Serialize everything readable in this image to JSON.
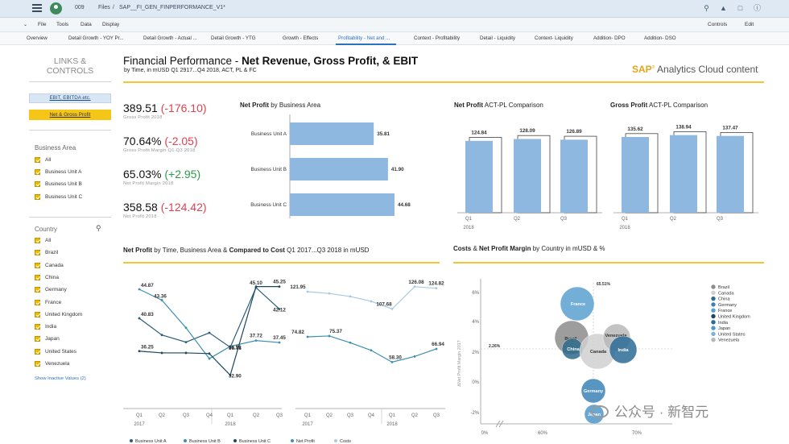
{
  "shell": {
    "counter": "009",
    "files_label": "Files",
    "separator": "/",
    "doc_name": "SAP__FI_GEN_FINPERFORMANCE_V1*",
    "icons": [
      "search-icon",
      "megaphone-icon",
      "chat-icon",
      "comment-icon",
      "help-icon"
    ]
  },
  "menubar": {
    "file": "File",
    "tools": "Tools",
    "data": "Data",
    "display": "Display",
    "controls": "Controls",
    "edit": "Edit"
  },
  "tabs": [
    {
      "label": "Overview"
    },
    {
      "label": "Detail Growth - YOY Pr..."
    },
    {
      "label": "Detail Growth - Actual ..."
    },
    {
      "label": "Detail Growth - YTG"
    },
    {
      "label": "Growth - Effects"
    },
    {
      "label": "Profitability - Net and ..."
    },
    {
      "label": "Context - Profitability"
    },
    {
      "label": "Detail - Liquidity"
    },
    {
      "label": "Context- Liquidity"
    },
    {
      "label": "Addition- DPO"
    },
    {
      "label": "Addition- DSO"
    }
  ],
  "active_tab_index": 5,
  "sidebar": {
    "title_line1": "LINKS &",
    "title_line2": "CONTROLS",
    "link1": "EBIT, EBITDA etc.",
    "link2": "Net & Gross Profit",
    "business_area": {
      "label": "Business Area",
      "items": [
        "All",
        "Business Unit A",
        "Business Unit B",
        "Business Unit C"
      ]
    },
    "country": {
      "label": "Country",
      "items": [
        "All",
        "Brazil",
        "Canada",
        "China",
        "Germany",
        "France",
        "United Kingdom",
        "India",
        "Japan",
        "United States",
        "Venezuela"
      ]
    },
    "show_inactive": "Show Inactive Values (2)"
  },
  "header": {
    "title_normal": "Financial Performance - ",
    "title_bold": "Net Revenue, Gross Profit, & EBIT",
    "subtitle": "by Time, in mUSD Q1 2917...Q4 2018, ACT, PL & FC",
    "brand_sap": "SAP",
    "brand_rest": "Analytics Cloud content"
  },
  "kpis": [
    {
      "value": "389.51",
      "delta": "(-176.10)",
      "delta_sign": "neg",
      "label": "Gross Profit 2018"
    },
    {
      "value": "70.64%",
      "delta": "(-2.05)",
      "delta_sign": "neg",
      "label": "Gross Profit Margin Q1-Q3 2018"
    },
    {
      "value": "65.03%",
      "delta": "(+2.95)",
      "delta_sign": "pos",
      "label": "Net Profit Margin 2018"
    },
    {
      "value": "358.58",
      "delta": "(-124.42)",
      "delta_sign": "neg",
      "label": "Net Profit 2018"
    }
  ],
  "chart_titles": {
    "np_ba_bold": "Net Profit",
    "np_ba_rest": " by Business Area",
    "np_actpl_bold": "Net Profit",
    "np_actpl_rest": " ACT-PL Comparison",
    "gp_actpl_bold": "Gross Profit",
    "gp_actpl_rest": " ACT-PL Comparison",
    "np_time_bold1": "Net Profit",
    "np_time_mid": " by Time, Business Area & ",
    "np_time_bold2": "Compared to Cost",
    "np_time_rest": " Q1 2017...Q3 2018 in mUSD",
    "costs_bold1": "Costs",
    "costs_mid": " & ",
    "costs_bold2": "Net Profit Margin",
    "costs_rest": " by Country in mUSD & %"
  },
  "legend_bottom": [
    "Business Unit A",
    "Business Unit B",
    "Business Unit C",
    "Net Profit",
    "Costs"
  ],
  "watermark": "公众号 · 新智元",
  "chart_data": [
    {
      "type": "bar",
      "title": "Net Profit by Business Area",
      "orientation": "horizontal",
      "categories": [
        "Business Unit A",
        "Business Unit B",
        "Business Unit C"
      ],
      "values": [
        35.81,
        41.9,
        44.68
      ],
      "color": "#8fb8e0"
    },
    {
      "type": "bar",
      "title": "Net Profit ACT-PL Comparison",
      "categories": [
        "Q1",
        "Q2",
        "Q3"
      ],
      "year_label": "2018",
      "series": [
        {
          "name": "ACT",
          "values": [
            124.84,
            128.09,
            126.89
          ]
        }
      ],
      "ylim": [
        0,
        140
      ]
    },
    {
      "type": "bar",
      "title": "Gross Profit ACT-PL Comparison",
      "categories": [
        "Q1",
        "Q2",
        "Q3"
      ],
      "year_label": "2018",
      "series": [
        {
          "name": "ACT",
          "values": [
            135.62,
            138.94,
            137.47
          ]
        }
      ],
      "ylim": [
        0,
        150
      ]
    },
    {
      "type": "line",
      "title": "Net Profit by Time, Business Area",
      "categories": [
        "Q1",
        "Q2",
        "Q3",
        "Q4",
        "Q1",
        "Q2",
        "Q3"
      ],
      "year_labels": [
        "2017",
        "2018"
      ],
      "series": [
        {
          "name": "Business Unit A",
          "values": [
            40.83,
            null,
            null,
            null,
            36.78,
            45.1,
            42.12
          ],
          "color": "#2a5d7a"
        },
        {
          "name": "Business Unit B",
          "values": [
            44.87,
            43.36,
            null,
            null,
            36.91,
            37.72,
            37.45
          ],
          "color": "#3e8fb0"
        },
        {
          "name": "Business Unit C",
          "values": [
            36.25,
            null,
            null,
            null,
            32.9,
            45.25,
            null
          ],
          "color": "#1d4660"
        }
      ],
      "labels": [
        "44.87",
        "43.36",
        "40.83",
        "36.25",
        "36.78",
        "36.91",
        "32.90",
        "45.10",
        "45.25",
        "42.12",
        "37.72",
        "37.45"
      ]
    },
    {
      "type": "line",
      "title": "Compared to Cost",
      "categories": [
        "Q1",
        "Q2",
        "Q3",
        "Q4",
        "Q1",
        "Q2",
        "Q3"
      ],
      "year_labels": [
        "2017",
        "2018"
      ],
      "series": [
        {
          "name": "Net Profit",
          "values": [
            74.82,
            75.37,
            null,
            null,
            58.3,
            null,
            66.94
          ],
          "color": "#3e8fb0"
        },
        {
          "name": "Costs",
          "values": [
            121.95,
            null,
            null,
            null,
            107.68,
            126.08,
            124.82
          ],
          "color": "#a9c9e2"
        }
      ]
    },
    {
      "type": "scatter",
      "title": "Costs & Net Profit Margin by Country in mUSD & %",
      "ylabel": "ΔNet Profit Margin 2017",
      "x_ticks": [
        "0%",
        "60%",
        "70%"
      ],
      "y_ticks": [
        "6%",
        "4%",
        "2%",
        "0%",
        "-2%"
      ],
      "reference_labels": [
        "65.51%",
        "2.26%"
      ],
      "points": [
        {
          "country": "France",
          "x": 64,
          "y": 4.9,
          "color": "#5aa0cf"
        },
        {
          "country": "Brazil",
          "x": 62.5,
          "y": 2.8,
          "color": "#8c8c8c"
        },
        {
          "country": "China",
          "x": 63,
          "y": 2.2,
          "color": "#2d6a8c"
        },
        {
          "country": "Canada",
          "x": 66.5,
          "y": 2.1,
          "color": "#d0d0d0"
        },
        {
          "country": "Venezuela",
          "x": 66.8,
          "y": 3.0,
          "color": "#b8b8b8"
        },
        {
          "country": "India",
          "x": 68.5,
          "y": 2.1,
          "color": "#2a6b94"
        },
        {
          "country": "Germany",
          "x": 66.3,
          "y": -0.55,
          "color": "#3b82b5"
        },
        {
          "country": "Japan",
          "x": 66.5,
          "y": -2.0,
          "color": "#4f96c8"
        }
      ],
      "legend": [
        "Brazil",
        "Canada",
        "China",
        "Germany",
        "France",
        "United Kingdom",
        "India",
        "Japan",
        "United States",
        "Venezuela"
      ],
      "legend_colors": [
        "#8c8c8c",
        "#d0d0d0",
        "#2d6a8c",
        "#3b82b5",
        "#5aa0cf",
        "#1d4660",
        "#2a6b94",
        "#4f96c8",
        "#7fb0d8",
        "#b8b8b8"
      ]
    }
  ]
}
